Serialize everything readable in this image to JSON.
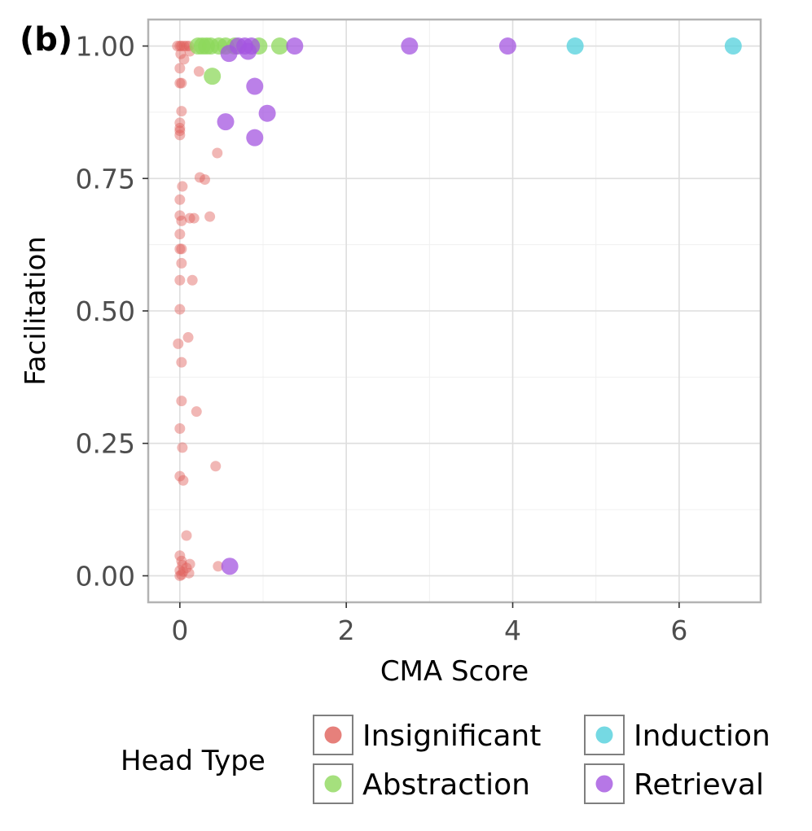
{
  "panel_label": "(b)",
  "chart_data": {
    "type": "scatter",
    "xlabel": "CMA Score",
    "ylabel": "Facilitation",
    "xlim": [
      -0.38,
      6.98
    ],
    "ylim": [
      -0.05,
      1.05
    ],
    "x_ticks": [
      0,
      2,
      4,
      6
    ],
    "y_ticks": [
      0.0,
      0.25,
      0.5,
      0.75,
      1.0
    ],
    "x_tick_labels": [
      "0",
      "2",
      "4",
      "6"
    ],
    "y_tick_labels": [
      "0.00",
      "0.25",
      "0.50",
      "0.75",
      "1.00"
    ],
    "grid": true,
    "legend": {
      "title": "Head Type",
      "position": "bottom"
    },
    "series": [
      {
        "name": "Insignificant",
        "color": "#e0605a",
        "opacity": 0.45,
        "point_size": "small",
        "points": [
          [
            0.0,
            1.0
          ],
          [
            0.02,
            1.0
          ],
          [
            0.05,
            1.0
          ],
          [
            0.08,
            1.0
          ],
          [
            0.11,
            1.0
          ],
          [
            -0.03,
            1.0
          ],
          [
            0.01,
            0.985
          ],
          [
            0.12,
            0.99
          ],
          [
            0.05,
            0.975
          ],
          [
            0.0,
            0.958
          ],
          [
            0.0,
            0.93
          ],
          [
            0.02,
            0.93
          ],
          [
            0.23,
            0.952
          ],
          [
            0.02,
            0.877
          ],
          [
            0.0,
            0.855
          ],
          [
            0.0,
            0.845
          ],
          [
            0.0,
            0.84
          ],
          [
            0.0,
            0.832
          ],
          [
            0.45,
            0.798
          ],
          [
            0.24,
            0.752
          ],
          [
            0.3,
            0.748
          ],
          [
            0.03,
            0.735
          ],
          [
            0.0,
            0.71
          ],
          [
            0.0,
            0.68
          ],
          [
            0.02,
            0.67
          ],
          [
            0.12,
            0.675
          ],
          [
            0.17,
            0.675
          ],
          [
            0.36,
            0.678
          ],
          [
            0.0,
            0.645
          ],
          [
            0.0,
            0.617
          ],
          [
            0.02,
            0.617
          ],
          [
            0.02,
            0.59
          ],
          [
            0.0,
            0.558
          ],
          [
            0.15,
            0.558
          ],
          [
            0.0,
            0.503
          ],
          [
            0.1,
            0.45
          ],
          [
            -0.02,
            0.438
          ],
          [
            0.02,
            0.403
          ],
          [
            0.02,
            0.33
          ],
          [
            0.2,
            0.31
          ],
          [
            0.0,
            0.278
          ],
          [
            0.03,
            0.242
          ],
          [
            0.43,
            0.207
          ],
          [
            0.0,
            0.188
          ],
          [
            0.04,
            0.18
          ],
          [
            0.08,
            0.076
          ],
          [
            0.0,
            0.038
          ],
          [
            0.02,
            0.028
          ],
          [
            0.12,
            0.022
          ],
          [
            0.46,
            0.018
          ],
          [
            0.03,
            0.02
          ],
          [
            0.08,
            0.015
          ],
          [
            0.0,
            0.01
          ],
          [
            0.04,
            0.008
          ],
          [
            0.11,
            0.005
          ],
          [
            0.02,
            0.002
          ],
          [
            0.0,
            0.0
          ]
        ]
      },
      {
        "name": "Abstraction",
        "color": "#8ed85c",
        "opacity": 0.75,
        "point_size": "large",
        "points": [
          [
            0.22,
            1.0
          ],
          [
            0.27,
            1.0
          ],
          [
            0.32,
            1.0
          ],
          [
            0.37,
            1.0
          ],
          [
            0.47,
            1.0
          ],
          [
            0.55,
            1.0
          ],
          [
            0.66,
            1.0
          ],
          [
            0.95,
            1.0
          ],
          [
            1.2,
            1.0
          ],
          [
            0.39,
            0.943
          ]
        ]
      },
      {
        "name": "Induction",
        "color": "#52d0dc",
        "opacity": 0.75,
        "point_size": "large",
        "points": [
          [
            4.75,
            1.0
          ],
          [
            6.65,
            1.0
          ]
        ]
      },
      {
        "name": "Retrieval",
        "color": "#a455e0",
        "opacity": 0.75,
        "point_size": "large",
        "points": [
          [
            0.7,
            1.0
          ],
          [
            0.78,
            1.0
          ],
          [
            0.86,
            1.0
          ],
          [
            1.38,
            1.0
          ],
          [
            2.76,
            1.0
          ],
          [
            3.94,
            1.0
          ],
          [
            0.82,
            0.99
          ],
          [
            0.59,
            0.986
          ],
          [
            0.9,
            0.924
          ],
          [
            1.05,
            0.873
          ],
          [
            0.55,
            0.857
          ],
          [
            0.9,
            0.827
          ],
          [
            0.6,
            0.018
          ]
        ]
      }
    ]
  }
}
